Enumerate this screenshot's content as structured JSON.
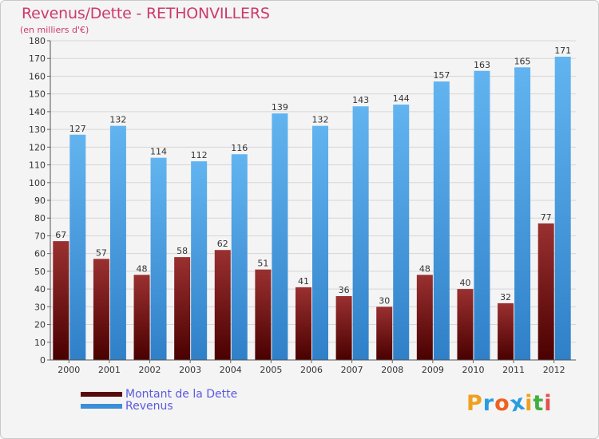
{
  "title": "Revenus/Dette - RETHONVILLERS",
  "subtitle": "(en milliers d'€)",
  "legend": {
    "debt_label": "Montant de la Dette",
    "revenue_label": "Revenus"
  },
  "logo": {
    "letters": [
      "P",
      "r",
      "o",
      "x",
      "i",
      "t",
      "i"
    ],
    "colors": [
      "#f0a020",
      "#2a9de0",
      "#f06020",
      "#2a9de0",
      "#f0a020",
      "#40b040",
      "#e05050"
    ]
  },
  "colors": {
    "debt": "#6b1010",
    "revenue": "#3a8fd6",
    "title": "#cc3a6a",
    "legend_text": "#5a5ae0"
  },
  "chart_data": {
    "type": "bar",
    "title": "Revenus/Dette - RETHONVILLERS",
    "ylabel": "(en milliers d'€)",
    "xlabel": "",
    "ylim": [
      0,
      180
    ],
    "ytick_step": 10,
    "yticks": [
      "0",
      "10",
      "20",
      "30",
      "40",
      "50",
      "60",
      "70",
      "80",
      "90",
      "100",
      "110",
      "120",
      "130",
      "140",
      "150",
      "160",
      "170",
      "180"
    ],
    "categories": [
      "2000",
      "2001",
      "2002",
      "2003",
      "2004",
      "2005",
      "2006",
      "2007",
      "2008",
      "2009",
      "2010",
      "2011",
      "2012"
    ],
    "series": [
      {
        "name": "Montant de la Dette",
        "values": [
          67,
          57,
          48,
          58,
          62,
          51,
          41,
          36,
          30,
          48,
          40,
          32,
          77
        ]
      },
      {
        "name": "Revenus",
        "values": [
          127,
          132,
          114,
          112,
          116,
          139,
          132,
          143,
          144,
          157,
          163,
          165,
          171
        ]
      }
    ],
    "grid": true,
    "legend_position": "bottom-left"
  }
}
